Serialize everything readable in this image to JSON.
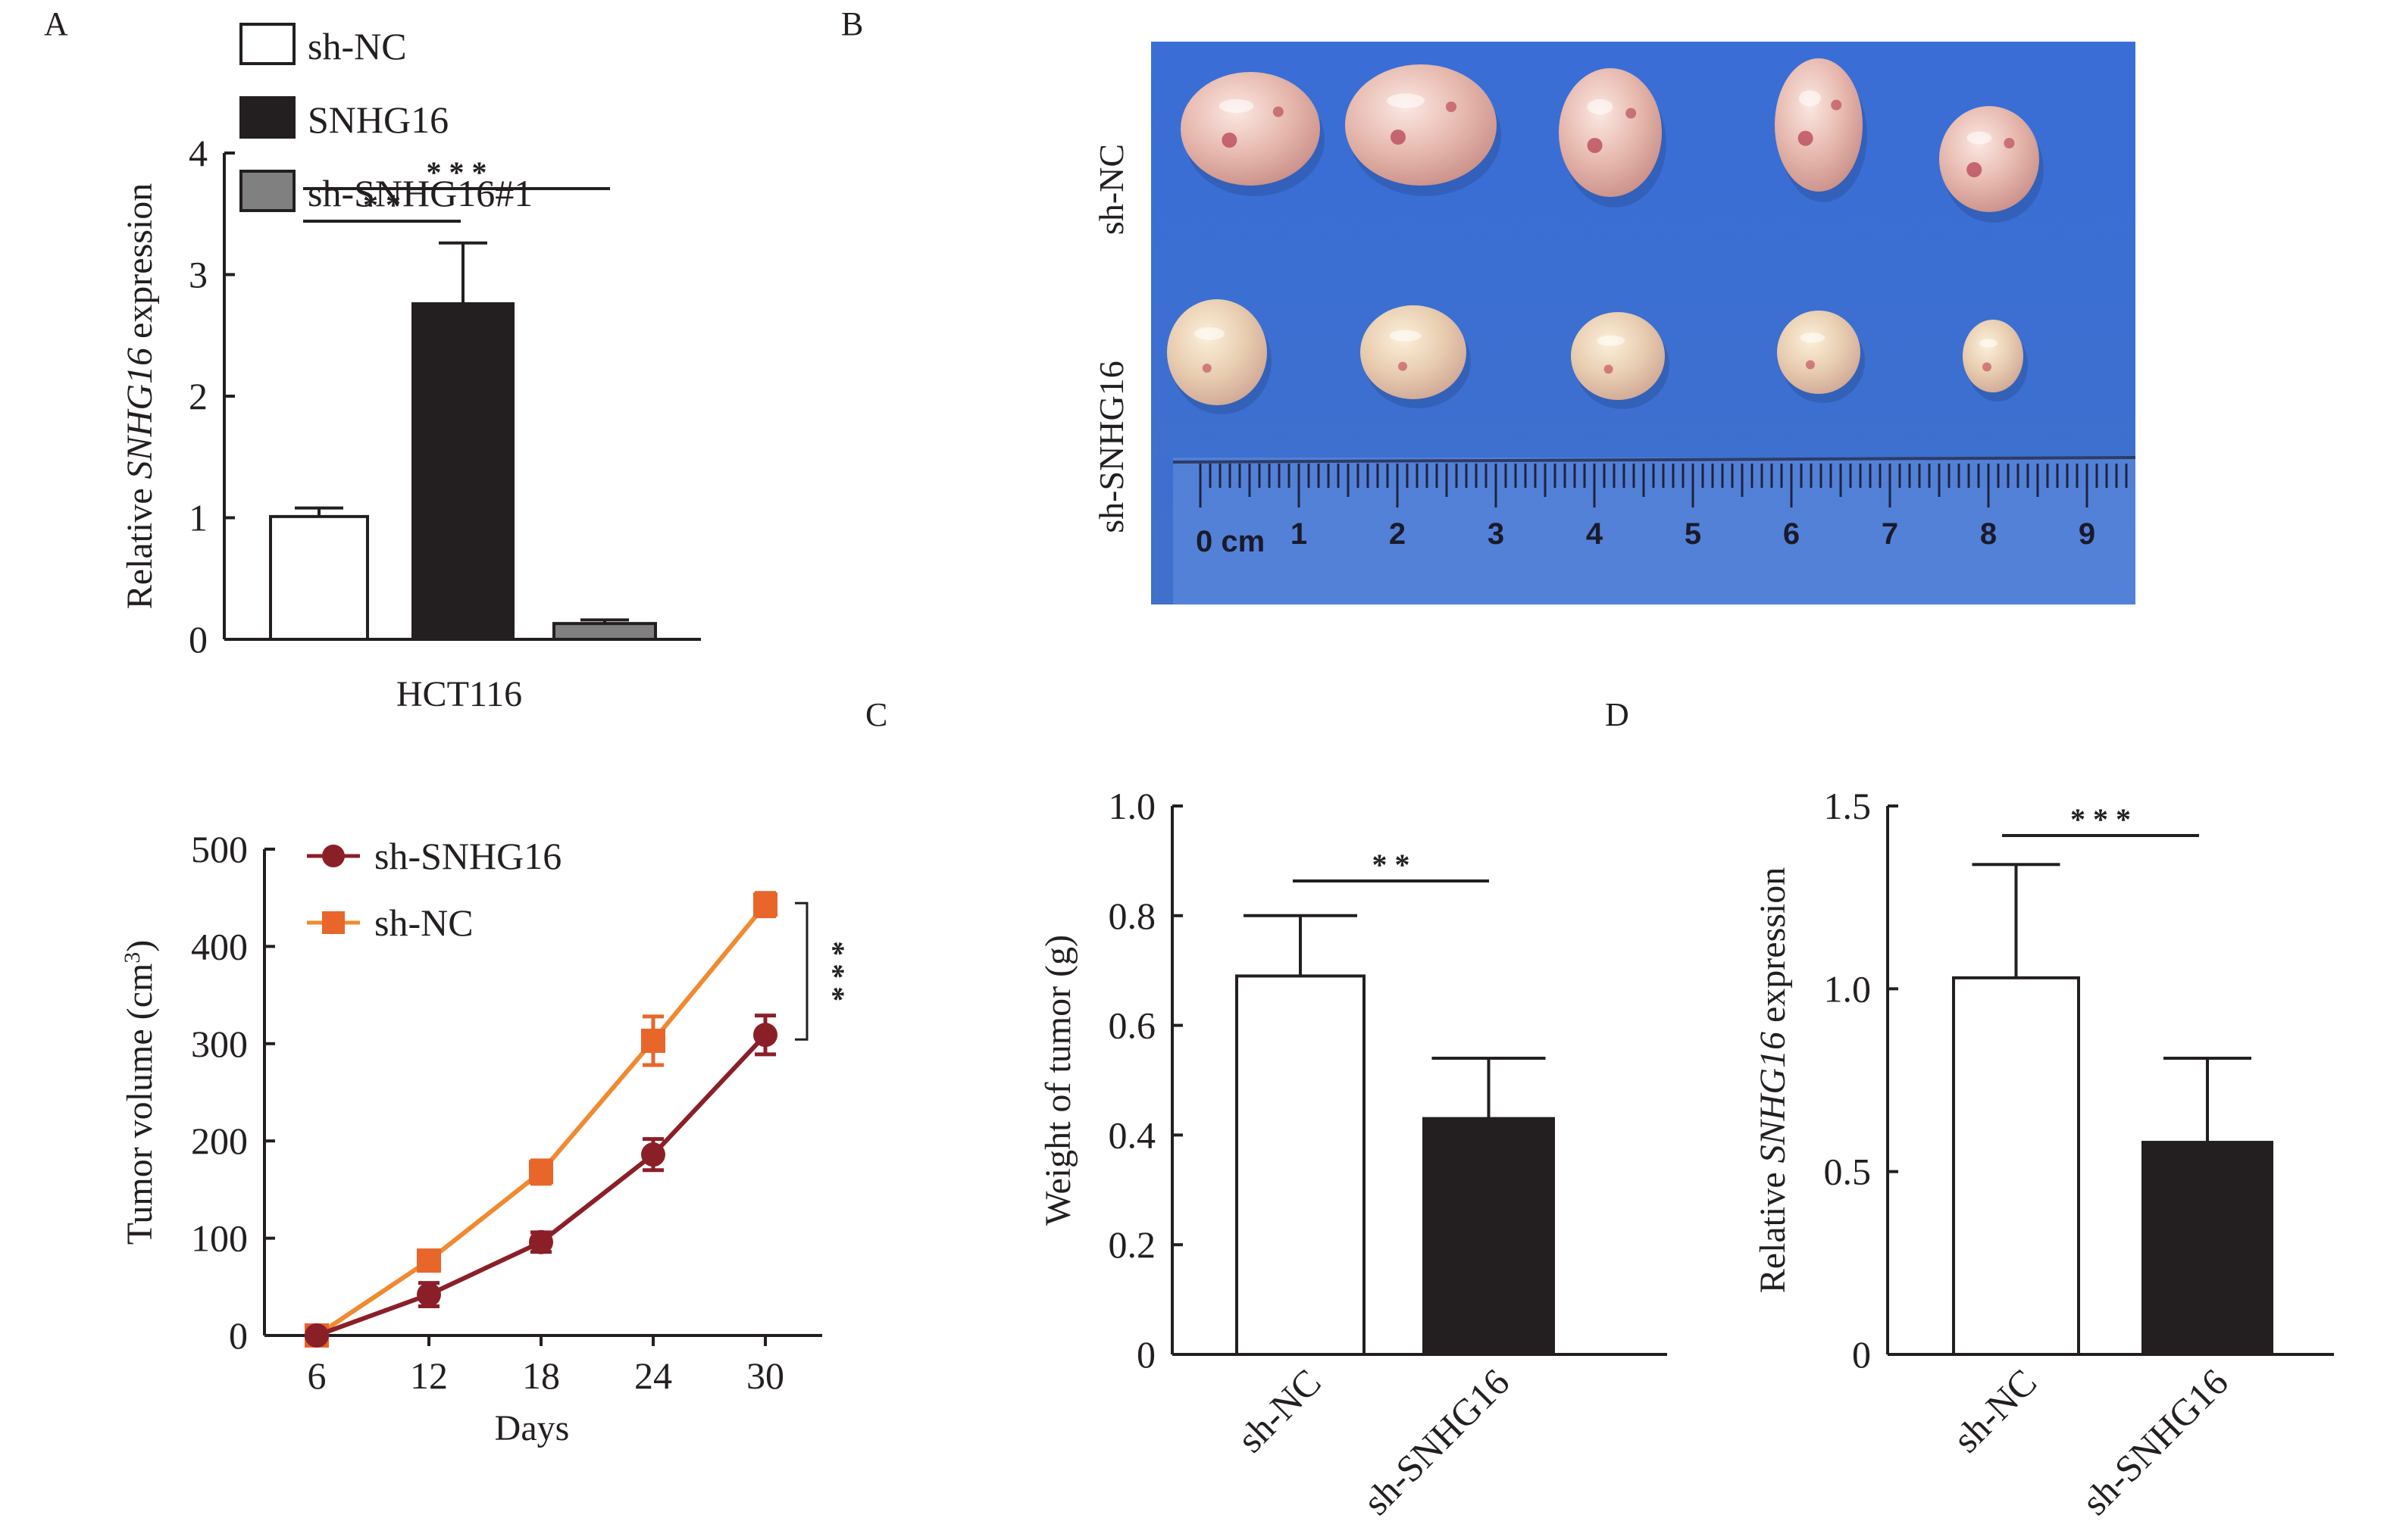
{
  "panels": {
    "a": {
      "letter": "A"
    },
    "b": {
      "letter": "B"
    },
    "c": {
      "letter": "C"
    },
    "d": {
      "letter": "D"
    }
  },
  "photo": {
    "row_labels": [
      "sh-NC",
      "sh-SNHG16"
    ],
    "ruler": {
      "unit_label": "0 cm",
      "numbers": [
        "1",
        "2",
        "3",
        "4",
        "5",
        "6",
        "7",
        "8",
        "9"
      ]
    },
    "tumors_per_row": 5,
    "colors": {
      "background": "#3d6fd2",
      "tumor": "#e9c3bb",
      "ruler": "#5a86d6"
    }
  },
  "chart_data": [
    {
      "id": "panel-a",
      "type": "bar",
      "title": "",
      "xlabel": "HCT116",
      "ylabel_prefix": "Relative ",
      "ylabel_italic": "SNHG16",
      "ylabel_suffix": " expression",
      "ylim": [
        0,
        4
      ],
      "yticks": [
        "0",
        "1",
        "2",
        "3",
        "4"
      ],
      "categories": [
        "sh-NC",
        "SNHG16",
        "sh-SNHG16#1"
      ],
      "values": [
        1.01,
        2.76,
        0.13
      ],
      "errors": [
        0.07,
        0.5,
        0.03
      ],
      "colors": [
        "#ffffff",
        "#231f20",
        "#808080"
      ],
      "legend": {
        "placement": "top-left",
        "entries": [
          "sh-NC",
          "SNHG16",
          "sh-SNHG16#1"
        ]
      },
      "significance": [
        {
          "from": 0,
          "to": 1,
          "label": "**"
        },
        {
          "from": 0,
          "to": 2,
          "label": "***"
        }
      ]
    },
    {
      "id": "panel-tumor-volume",
      "type": "line",
      "title": "",
      "xlabel": "Days",
      "ylabel": "Tumor volume (cm",
      "ylabel_sup": "3",
      "ylabel_end": ")",
      "x": [
        6,
        12,
        18,
        24,
        30
      ],
      "xticks": [
        "6",
        "12",
        "18",
        "24",
        "30"
      ],
      "ylim": [
        0,
        500
      ],
      "yticks": [
        "0",
        "100",
        "200",
        "300",
        "400",
        "500"
      ],
      "series": [
        {
          "name": "sh-SNHG16",
          "marker": "circle",
          "color": "#8b1f28",
          "values": [
            0,
            42,
            96,
            186,
            309
          ],
          "errors": [
            3,
            12,
            10,
            16,
            20
          ]
        },
        {
          "name": "sh-NC",
          "marker": "square",
          "color": "#e8662a",
          "line_color": "#f08a30",
          "values": [
            0,
            77,
            168,
            303,
            443
          ],
          "errors": [
            3,
            6,
            12,
            25,
            12
          ]
        }
      ],
      "legend": {
        "placement": "top-left"
      },
      "significance": [
        {
          "label": "***",
          "between": "day 30 series"
        }
      ]
    },
    {
      "id": "panel-c",
      "type": "bar",
      "title": "",
      "xlabel": "",
      "ylabel": "Weight of tumor (g)",
      "ylim": [
        0,
        1.0
      ],
      "yticks": [
        "0",
        "0.2",
        "0.4",
        "0.6",
        "0.8",
        "1.0"
      ],
      "categories": [
        "sh-NC",
        "sh-SNHG16"
      ],
      "values": [
        0.69,
        0.43
      ],
      "errors": [
        0.11,
        0.11
      ],
      "colors": [
        "#ffffff",
        "#231f20"
      ],
      "significance": [
        {
          "from": 0,
          "to": 1,
          "label": "**"
        }
      ]
    },
    {
      "id": "panel-d",
      "type": "bar",
      "title": "",
      "xlabel": "",
      "ylabel_prefix": "Relative ",
      "ylabel_italic": "SNHG16",
      "ylabel_suffix": " expression",
      "ylim": [
        0,
        1.5
      ],
      "yticks": [
        "0",
        "0.5",
        "1.0",
        "1.5"
      ],
      "categories": [
        "sh-NC",
        "sh-SNHG16"
      ],
      "values": [
        1.03,
        0.58
      ],
      "errors": [
        0.31,
        0.23
      ],
      "colors": [
        "#ffffff",
        "#231f20"
      ],
      "significance": [
        {
          "from": 0,
          "to": 1,
          "label": "***"
        }
      ]
    }
  ]
}
